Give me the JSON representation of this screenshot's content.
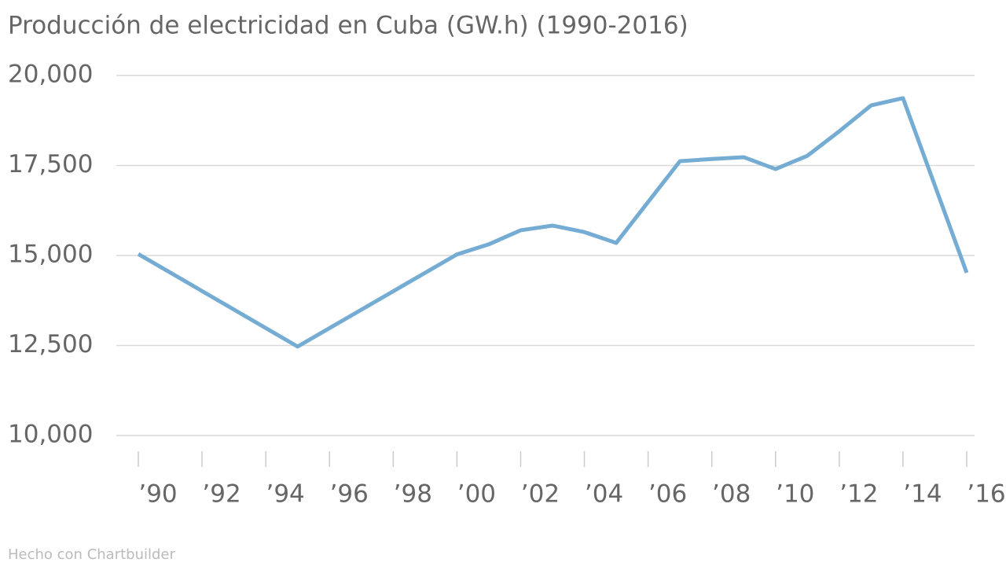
{
  "chart_data": {
    "type": "line",
    "title": "Producción de electricidad en Cuba (GW.h) (1990-2016)",
    "footer": "Hecho con Chartbuilder",
    "x": [
      1990,
      1995,
      2000,
      2001,
      2002,
      2003,
      2004,
      2005,
      2007,
      2008,
      2009,
      2010,
      2011,
      2012,
      2013,
      2014,
      2016
    ],
    "series": [
      {
        "name": "Producción",
        "color": "#75acd4",
        "values": [
          15040,
          12470,
          15030,
          15310,
          15700,
          15830,
          15650,
          15350,
          17620,
          17680,
          17730,
          17400,
          17770,
          18450,
          19170,
          19370,
          14520
        ]
      }
    ],
    "xlim": [
      1990,
      2016
    ],
    "xticks": [
      {
        "value": 1990,
        "label": "’90"
      },
      {
        "value": 1992,
        "label": "’92"
      },
      {
        "value": 1994,
        "label": "’94"
      },
      {
        "value": 1996,
        "label": "’96"
      },
      {
        "value": 1998,
        "label": "’98"
      },
      {
        "value": 2000,
        "label": "’00"
      },
      {
        "value": 2002,
        "label": "’02"
      },
      {
        "value": 2004,
        "label": "’04"
      },
      {
        "value": 2006,
        "label": "’06"
      },
      {
        "value": 2008,
        "label": "’08"
      },
      {
        "value": 2010,
        "label": "’10"
      },
      {
        "value": 2012,
        "label": "’12"
      },
      {
        "value": 2014,
        "label": "’14"
      },
      {
        "value": 2016,
        "label": "’16"
      }
    ],
    "ylim": [
      10000,
      20000
    ],
    "yticks": [
      {
        "value": 10000,
        "label": "10,000"
      },
      {
        "value": 12500,
        "label": "12,500"
      },
      {
        "value": 15000,
        "label": "15,000"
      },
      {
        "value": 17500,
        "label": "17,500"
      },
      {
        "value": 20000,
        "label": "20,000"
      }
    ],
    "grid": true
  }
}
